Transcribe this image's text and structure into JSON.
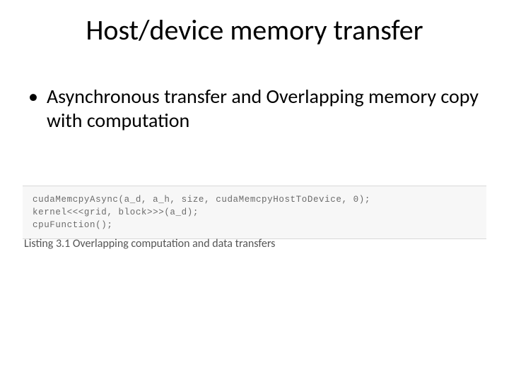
{
  "slide": {
    "title": "Host/device memory transfer",
    "bullet": {
      "marker": "•",
      "text": "Asynchronous transfer and  Overlapping memory copy with computation"
    },
    "code": {
      "background_color": "#f7f7f7",
      "border_color": "#d9d9d9",
      "text_color": "#6b6b6b",
      "font_family": "Consolas",
      "font_size": 12.5,
      "line1": "cudaMemcpyAsync(a_d, a_h, size, cudaMemcpyHostToDevice, 0);",
      "line2": "kernel<<<grid, block>>>(a_d);",
      "line3": "cpuFunction();"
    },
    "caption": "Listing 3.1 Overlapping computation and data transfers",
    "colors": {
      "page_background": "#ffffff",
      "title_color": "#000000",
      "body_text_color": "#000000",
      "caption_color": "#555555"
    },
    "typography": {
      "title_fontsize": 40,
      "body_fontsize": 28,
      "caption_fontsize": 16
    }
  }
}
